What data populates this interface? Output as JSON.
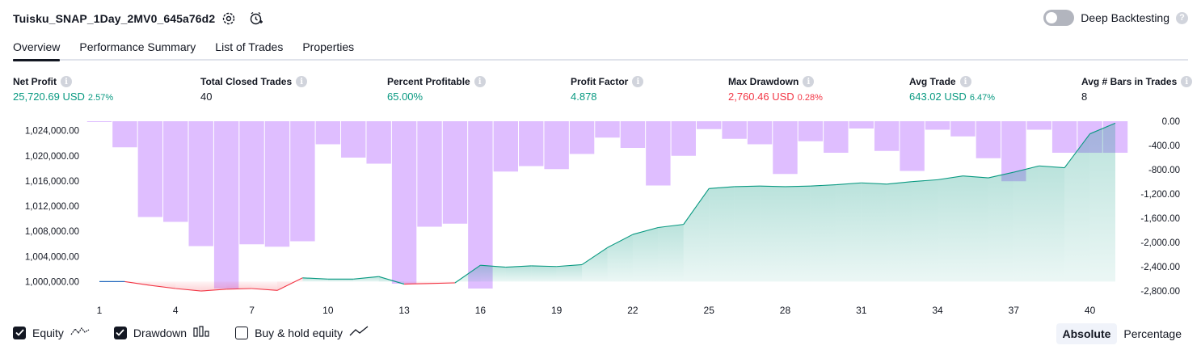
{
  "header": {
    "title": "Tuisku_SNAP_1Day_2MV0_645a76d2",
    "deep_backtesting_label": "Deep Backtesting",
    "deep_backtesting_enabled": false
  },
  "tabs": [
    {
      "label": "Overview",
      "active": true
    },
    {
      "label": "Performance Summary",
      "active": false
    },
    {
      "label": "List of Trades",
      "active": false
    },
    {
      "label": "Properties",
      "active": false
    }
  ],
  "metrics": [
    {
      "label": "Net Profit",
      "value": "25,720.69 USD",
      "pct": "2.57%",
      "color": "#089981"
    },
    {
      "label": "Total Closed Trades",
      "value": "40",
      "pct": "",
      "color": "#131722"
    },
    {
      "label": "Percent Profitable",
      "value": "65.00%",
      "pct": "",
      "color": "#089981"
    },
    {
      "label": "Profit Factor",
      "value": "4.878",
      "pct": "",
      "color": "#089981"
    },
    {
      "label": "Max Drawdown",
      "value": "2,760.46 USD",
      "pct": "0.28%",
      "color": "#f23645"
    },
    {
      "label": "Avg Trade",
      "value": "643.02 USD",
      "pct": "6.47%",
      "color": "#089981"
    },
    {
      "label": "Avg # Bars in Trades",
      "value": "8",
      "pct": "",
      "color": "#131722"
    }
  ],
  "chart_data": {
    "type": "line",
    "x_ticks": [
      "1",
      "4",
      "7",
      "10",
      "13",
      "16",
      "19",
      "22",
      "25",
      "28",
      "31",
      "34",
      "37",
      "40"
    ],
    "x_range": [
      1,
      41
    ],
    "left_axis": {
      "ticks": [
        "1,024,000.00",
        "1,020,000.00",
        "1,016,000.00",
        "1,012,000.00",
        "1,008,000.00",
        "1,004,000.00",
        "1,000,000.00"
      ],
      "ylim": [
        998000,
        1025500
      ]
    },
    "right_axis": {
      "ticks": [
        "0.00",
        "-400.00",
        "-800.00",
        "-1,200.00",
        "-1,600.00",
        "-2,000.00",
        "-2,400.00",
        "-2,800.00"
      ],
      "ylim": [
        -2800,
        0
      ]
    },
    "series": [
      {
        "name": "Equity",
        "color_up": "#089981",
        "color_down": "#f23645",
        "baseline": 1000000,
        "x": [
          1,
          2,
          3,
          4,
          5,
          6,
          7,
          8,
          9,
          10,
          11,
          12,
          13,
          14,
          15,
          16,
          17,
          18,
          19,
          20,
          21,
          22,
          23,
          24,
          25,
          26,
          27,
          28,
          29,
          30,
          31,
          32,
          33,
          34,
          35,
          36,
          37,
          38,
          39,
          40,
          41
        ],
        "values": [
          1000000,
          1000000,
          999400,
          998900,
          998500,
          998800,
          998900,
          998600,
          1000600,
          1000400,
          1000400,
          1000800,
          999600,
          999700,
          999800,
          1002600,
          1002300,
          1002500,
          1002400,
          1002700,
          1005400,
          1007500,
          1008600,
          1009100,
          1014800,
          1015100,
          1015200,
          1015100,
          1015200,
          1015400,
          1015700,
          1015500,
          1015900,
          1016200,
          1016800,
          1016500,
          1017400,
          1018400,
          1018100,
          1023500,
          1025200
        ]
      },
      {
        "name": "Drawdown",
        "color": "#d9b3ff",
        "x": [
          1,
          2,
          3,
          4,
          5,
          6,
          7,
          8,
          9,
          10,
          11,
          12,
          13,
          14,
          15,
          16,
          17,
          18,
          19,
          20,
          21,
          22,
          23,
          24,
          25,
          26,
          27,
          28,
          29,
          30,
          31,
          32,
          33,
          34,
          35,
          36,
          37,
          38,
          39,
          40,
          41
        ],
        "values": [
          0,
          -430,
          -1580,
          -1660,
          -2060,
          -2760,
          -2030,
          -2070,
          -1980,
          -380,
          -600,
          -700,
          -2680,
          -1740,
          -1690,
          -2760,
          -830,
          -740,
          -790,
          -540,
          -270,
          -440,
          -1060,
          -570,
          -130,
          -290,
          -380,
          -870,
          -330,
          -520,
          -120,
          -490,
          -820,
          -140,
          -250,
          -610,
          -990,
          -140,
          -520,
          -520,
          -520
        ]
      }
    ]
  },
  "legend": {
    "items": [
      {
        "label": "Equity",
        "checked": true
      },
      {
        "label": "Drawdown",
        "checked": true
      },
      {
        "label": "Buy & hold equity",
        "checked": false
      }
    ]
  },
  "mode": {
    "options": [
      {
        "label": "Absolute",
        "active": true
      },
      {
        "label": "Percentage",
        "active": false
      }
    ]
  }
}
